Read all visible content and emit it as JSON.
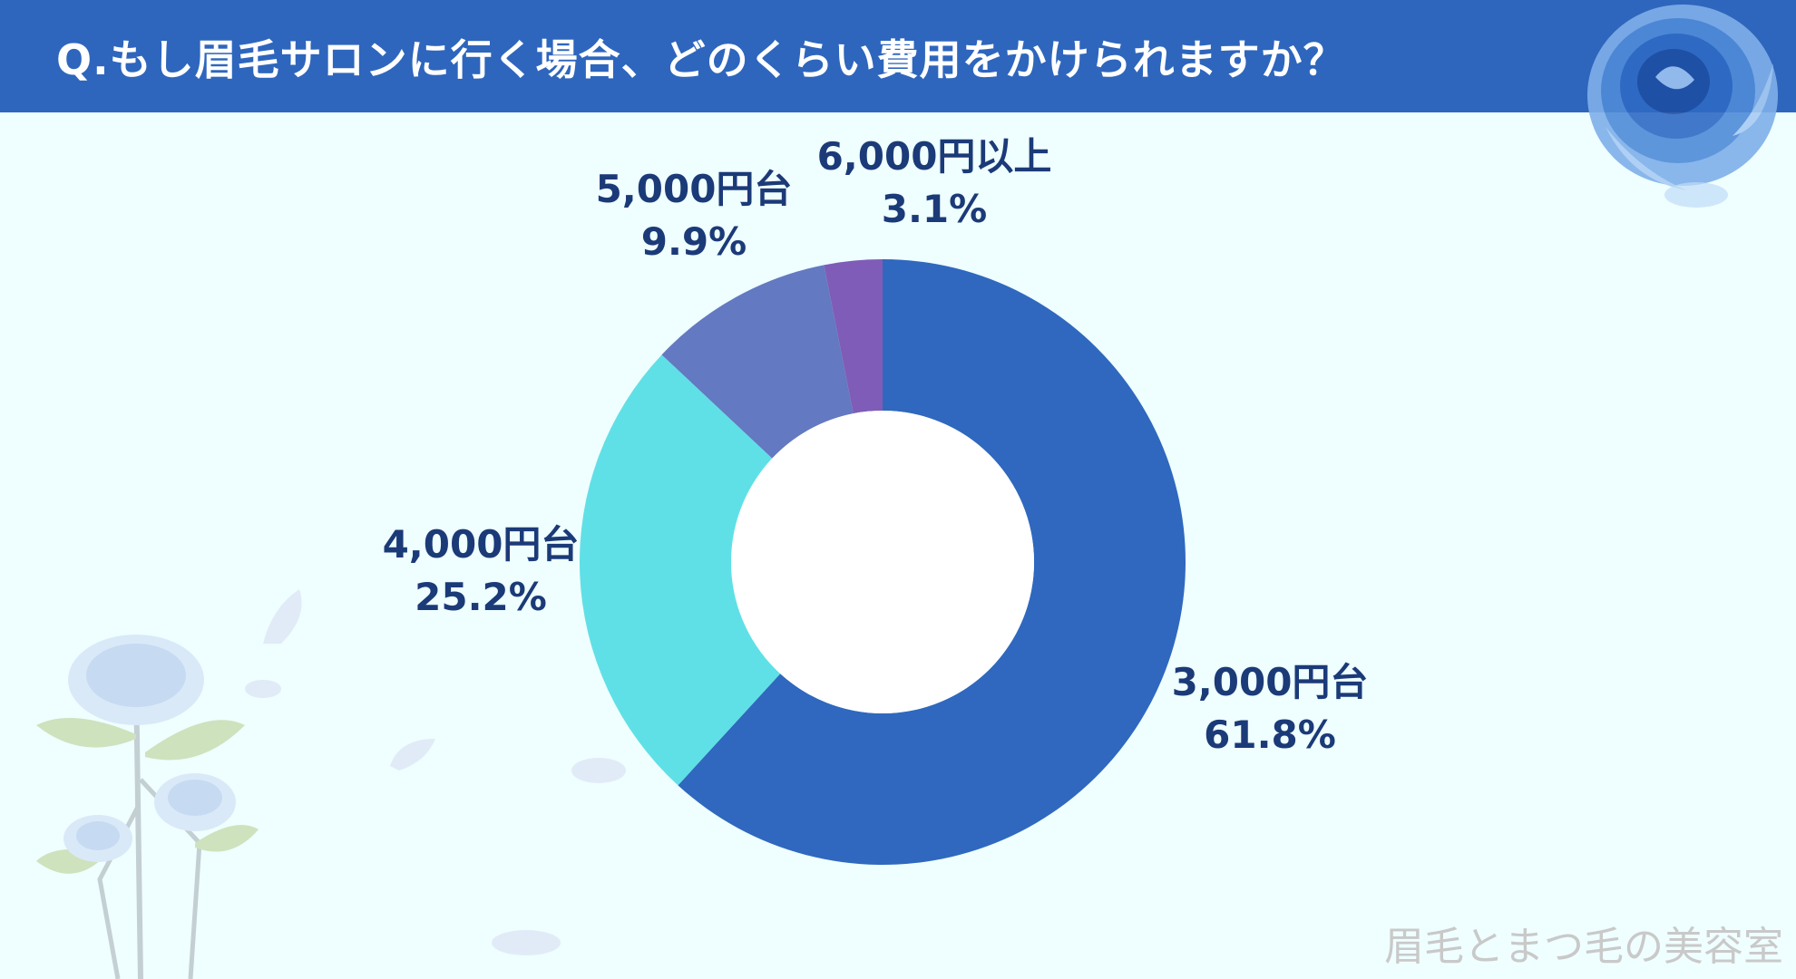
{
  "header": {
    "title": "Q.もし眉毛サロンに行く場合、どのくらい費用をかけられますか？"
  },
  "footer": {
    "watermark": "眉毛とまつ毛の美容室"
  },
  "colors": {
    "title_bar": "#2e66bd",
    "background": "#effefe",
    "label_text": "#1b3a78",
    "watermark": "#c9c9c9"
  },
  "chart_data": {
    "type": "pie",
    "donut": true,
    "title": "",
    "start": "12 o'clock, clockwise",
    "slices": [
      {
        "label": "3,000円台",
        "value": 61.8,
        "value_label": "61.8%",
        "color": "#2f68be",
        "label_position": "right"
      },
      {
        "label": "4,000円台",
        "value": 25.2,
        "value_label": "25.2%",
        "color": "#5fe0e6",
        "label_position": "left"
      },
      {
        "label": "5,000円台",
        "value": 9.9,
        "value_label": "9.9%",
        "color": "#6379c1",
        "label_position": "top-left"
      },
      {
        "label": "6,000円以上",
        "value": 3.1,
        "value_label": "3.1%",
        "color": "#7f5cb7",
        "label_position": "top"
      }
    ]
  }
}
